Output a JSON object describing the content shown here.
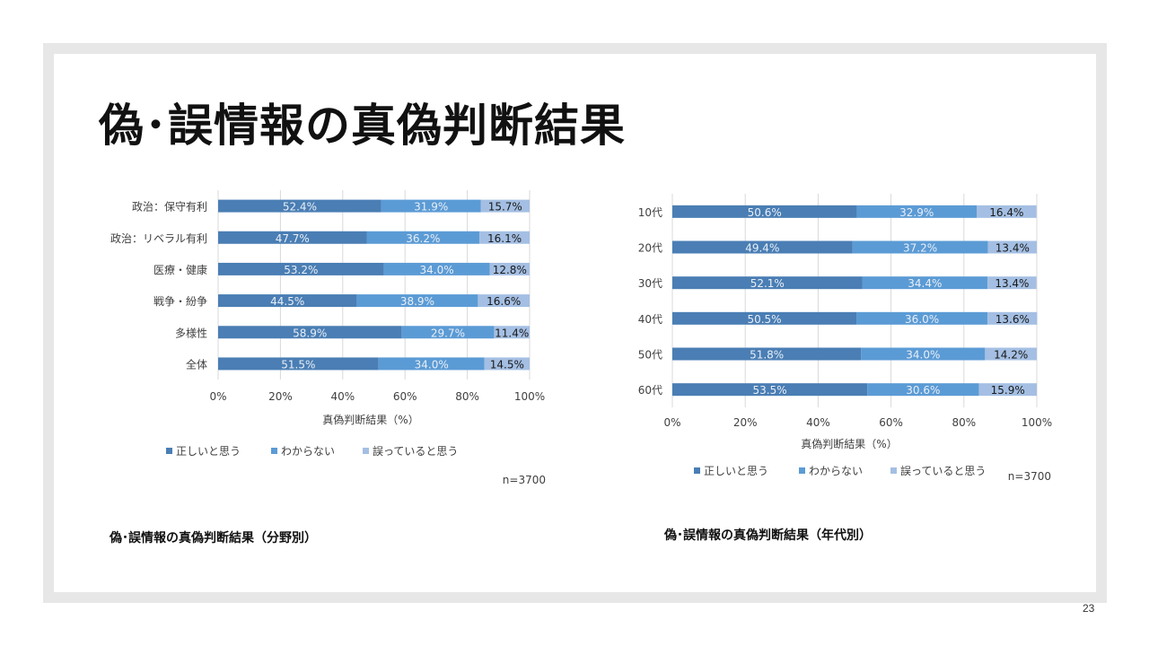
{
  "title": "偽･誤情報の真偽判断結果",
  "page_number": "23",
  "colors": {
    "correct": "#4a7eb4",
    "unknown": "#5b9bd5",
    "wrong": "#a4bfe3",
    "grid": "#d9d9d9",
    "axis_text": "#404040"
  },
  "chart_data": [
    {
      "type": "bar",
      "orientation": "horizontal-stacked-100",
      "caption": "偽･誤情報の真偽判断結果（分野別）",
      "categories": [
        "政治：保守有利",
        "政治：リベラル有利",
        "医療・健康",
        "戦争・紛争",
        "多様性",
        "全体"
      ],
      "series": [
        {
          "name": "正しいと思う",
          "values": [
            52.4,
            47.7,
            53.2,
            44.5,
            58.9,
            51.5
          ]
        },
        {
          "name": "わからない",
          "values": [
            31.9,
            36.2,
            34.0,
            38.9,
            29.7,
            34.0
          ]
        },
        {
          "name": "誤っていると思う",
          "values": [
            15.7,
            16.1,
            12.8,
            16.6,
            11.4,
            14.5
          ]
        }
      ],
      "xlabel": "真偽判断結果（%）",
      "xticks": [
        "0%",
        "20%",
        "40%",
        "60%",
        "80%",
        "100%"
      ],
      "xlim": [
        0,
        100
      ],
      "note": "n=3700"
    },
    {
      "type": "bar",
      "orientation": "horizontal-stacked-100",
      "caption": "偽･誤情報の真偽判断結果（年代別）",
      "categories": [
        "10代",
        "20代",
        "30代",
        "40代",
        "50代",
        "60代"
      ],
      "series": [
        {
          "name": "正しいと思う",
          "values": [
            50.6,
            49.4,
            52.1,
            50.5,
            51.8,
            53.5
          ]
        },
        {
          "name": "わからない",
          "values": [
            32.9,
            37.2,
            34.4,
            36.0,
            34.0,
            30.6
          ]
        },
        {
          "name": "誤っていると思う",
          "values": [
            16.4,
            13.4,
            13.4,
            13.6,
            14.2,
            15.9
          ]
        }
      ],
      "xlabel": "真偽判断結果（%）",
      "xticks": [
        "0%",
        "20%",
        "40%",
        "60%",
        "80%",
        "100%"
      ],
      "xlim": [
        0,
        100
      ],
      "note": "n=3700"
    }
  ]
}
